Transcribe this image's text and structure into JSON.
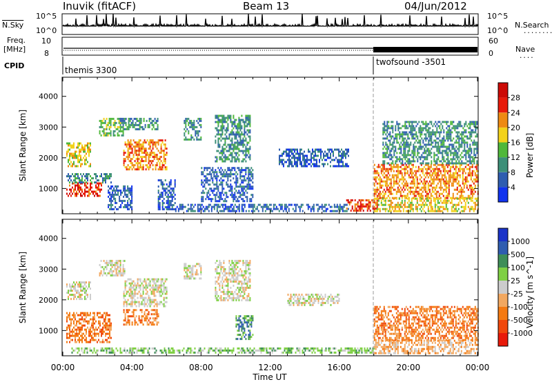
{
  "header": {
    "station": "Inuvik (fitACF)",
    "beam": "Beam 13",
    "date": "04/Jun/2012"
  },
  "status_panels": {
    "nsky_label": "N.Sky",
    "nsky_ticks": [
      "10^5",
      "10^0"
    ],
    "nsearch_label": "N.Search",
    "freq_label": "Freq.",
    "freq_unit": "[MHz]",
    "freq_ticks": [
      "10",
      "8"
    ],
    "nave_label": "Nave",
    "nave_ticks": [
      "60",
      "0"
    ],
    "cpid_label": "CPID",
    "cpid_modes": [
      {
        "name": "themis 3300",
        "start": "00:00"
      },
      {
        "name": "twofsound -3501",
        "start": "18:00"
      }
    ]
  },
  "chart_data": [
    {
      "type": "heatmap",
      "panel": "power",
      "ylabel": "Slant Range [km]",
      "yticks": [
        1000,
        2000,
        3000,
        4000
      ],
      "ylim": [
        200,
        4600
      ],
      "xlim_hours": [
        0,
        24
      ],
      "colorbar_label": "Power [dB]",
      "colorbar_ticks": [
        "4",
        "8",
        "12",
        "16",
        "20",
        "24",
        "28"
      ],
      "colors": [
        "#1133ee",
        "#2e5db0",
        "#3c8f78",
        "#4fb83a",
        "#f2d21a",
        "#ee8a12",
        "#e81a0a",
        "#cc0a06"
      ],
      "regions": [
        {
          "x0": 0.2,
          "x1": 2.2,
          "y0": 750,
          "y1": 1200,
          "level": 6
        },
        {
          "x0": 0.2,
          "x1": 2.8,
          "y0": 1200,
          "y1": 1500,
          "level": 2
        },
        {
          "x0": 0.2,
          "x1": 1.6,
          "y0": 1750,
          "y1": 2500,
          "level": 4
        },
        {
          "x0": 2.1,
          "x1": 3.5,
          "y0": 2700,
          "y1": 3300,
          "level": 3
        },
        {
          "x0": 3.5,
          "x1": 6.0,
          "y0": 1600,
          "y1": 2600,
          "level": 5
        },
        {
          "x0": 3.3,
          "x1": 5.5,
          "y0": 2900,
          "y1": 3300,
          "level": 2
        },
        {
          "x0": 2.6,
          "x1": 4.0,
          "y0": 300,
          "y1": 1100,
          "level": 1
        },
        {
          "x0": 5.5,
          "x1": 6.5,
          "y0": 350,
          "y1": 1300,
          "level": 1
        },
        {
          "x0": 6.5,
          "x1": 16.5,
          "y0": 250,
          "y1": 500,
          "level": 1
        },
        {
          "x0": 7.0,
          "x1": 8.0,
          "y0": 2600,
          "y1": 3300,
          "level": 2
        },
        {
          "x0": 8.8,
          "x1": 10.8,
          "y0": 1900,
          "y1": 3400,
          "level": 2
        },
        {
          "x0": 8.0,
          "x1": 11.0,
          "y0": 600,
          "y1": 1700,
          "level": 1
        },
        {
          "x0": 12.5,
          "x1": 16.5,
          "y0": 1700,
          "y1": 2300,
          "level": 1
        },
        {
          "x0": 16.4,
          "x1": 18.2,
          "y0": 250,
          "y1": 650,
          "level": 6
        },
        {
          "x0": 18.0,
          "x1": 24.0,
          "y0": 700,
          "y1": 1800,
          "level": 5
        },
        {
          "x0": 18.0,
          "x1": 24.0,
          "y0": 250,
          "y1": 700,
          "level": 4
        },
        {
          "x0": 18.5,
          "x1": 24.0,
          "y0": 1800,
          "y1": 3200,
          "level": 2
        }
      ]
    },
    {
      "type": "heatmap",
      "panel": "velocity",
      "ylabel": "Slant Range [km]",
      "xlabel": "Time UT",
      "xticks": [
        "00:00",
        "04:00",
        "08:00",
        "12:00",
        "16:00",
        "20:00",
        "00:00"
      ],
      "yticks": [
        1000,
        2000,
        3000,
        4000
      ],
      "ylim": [
        200,
        4600
      ],
      "xlim_hours": [
        0,
        24
      ],
      "colorbar_label": "Velocity [m s^-1]",
      "colorbar_ticks": [
        "-1000",
        "-500",
        "-100",
        "-25",
        "25",
        "100",
        "500",
        "1000"
      ],
      "colors": [
        "#e81a0a",
        "#f0480c",
        "#f47a12",
        "#f2a860",
        "#cccccc",
        "#7fd044",
        "#3e8e58",
        "#2f5db0",
        "#1a33c8"
      ],
      "regions": [
        {
          "x0": 0.2,
          "x1": 2.8,
          "y0": 650,
          "y1": 1600,
          "level": 2
        },
        {
          "x0": 0.2,
          "x1": 1.6,
          "y0": 2000,
          "y1": 2600,
          "level": 4
        },
        {
          "x0": 2.1,
          "x1": 3.6,
          "y0": 2800,
          "y1": 3300,
          "level": 4
        },
        {
          "x0": 3.5,
          "x1": 6.0,
          "y0": 1800,
          "y1": 2700,
          "level": 4
        },
        {
          "x0": 3.5,
          "x1": 5.5,
          "y0": 1200,
          "y1": 1700,
          "level": 2
        },
        {
          "x0": 8.8,
          "x1": 10.8,
          "y0": 2000,
          "y1": 3300,
          "level": 4
        },
        {
          "x0": 7.0,
          "x1": 8.0,
          "y0": 2700,
          "y1": 3200,
          "level": 4
        },
        {
          "x0": 13.0,
          "x1": 16.0,
          "y0": 1800,
          "y1": 2200,
          "level": 4
        },
        {
          "x0": 0.5,
          "x1": 18.0,
          "y0": 250,
          "y1": 450,
          "level": 5
        },
        {
          "x0": 18.0,
          "x1": 24.0,
          "y0": 700,
          "y1": 1800,
          "level": 2
        },
        {
          "x0": 18.0,
          "x1": 24.0,
          "y0": 250,
          "y1": 700,
          "level": 3
        },
        {
          "x0": 10.0,
          "x1": 11.0,
          "y0": 700,
          "y1": 1500,
          "level": 6
        }
      ]
    }
  ]
}
